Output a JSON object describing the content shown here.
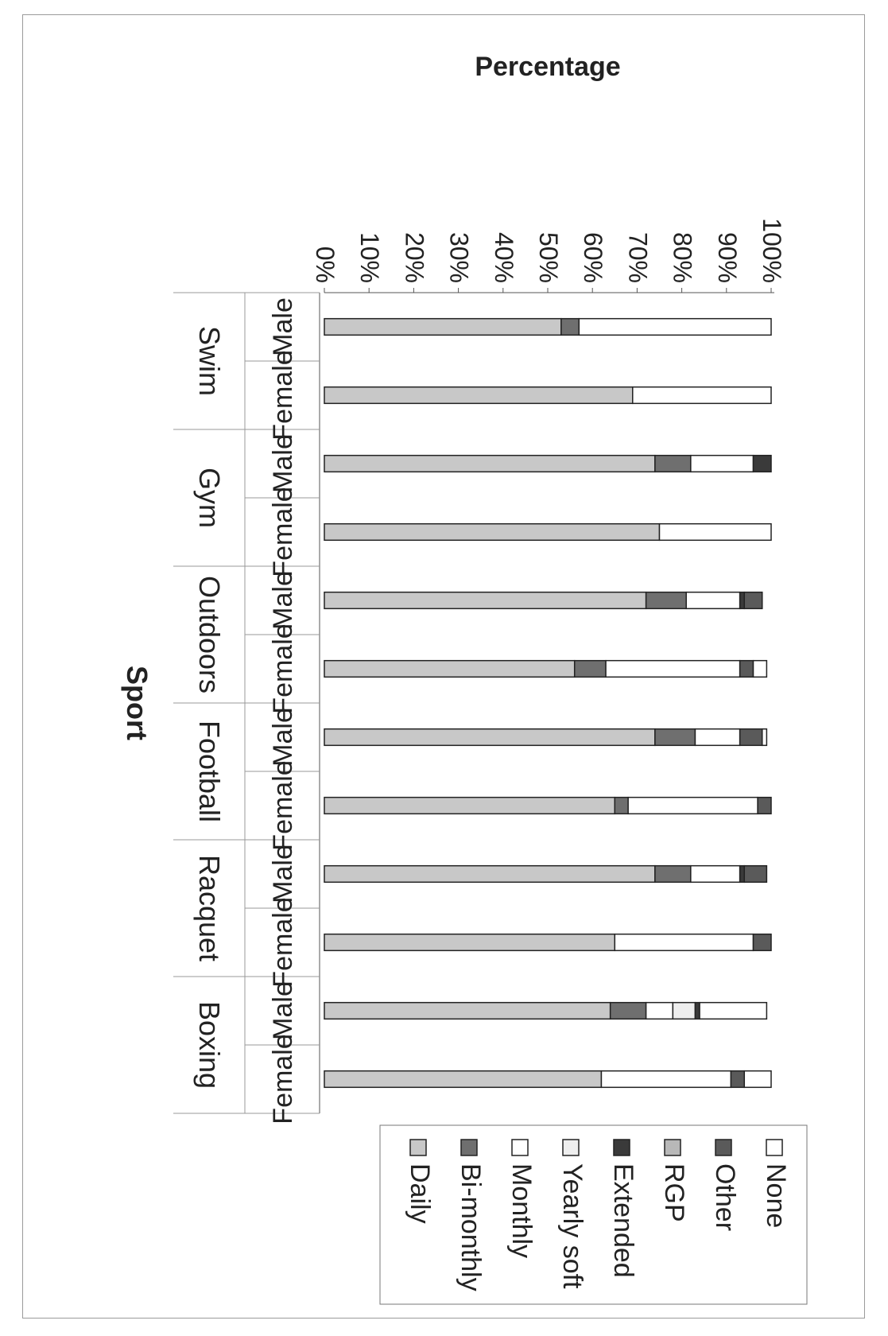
{
  "chart_data": {
    "type": "bar",
    "stacked": true,
    "orientation": "rotated-90",
    "ylabel": "Percentage",
    "xlabel": "Sport",
    "ylim": [
      0,
      100
    ],
    "y_ticks": [
      "0%",
      "10%",
      "20%",
      "30%",
      "40%",
      "50%",
      "60%",
      "70%",
      "80%",
      "90%",
      "100%"
    ],
    "groups": [
      "Swim",
      "Gym",
      "Outdoors",
      "Football",
      "Racquet",
      "Boxing"
    ],
    "categories": [
      "Male",
      "Female",
      "Male",
      "Female",
      "Male",
      "Female",
      "Male",
      "Female",
      "Male",
      "Female",
      "Male",
      "Female"
    ],
    "legend_position": "top-right",
    "series": [
      {
        "name": "Daily",
        "color": "#c8c8c8",
        "values": [
          53,
          69,
          74,
          75,
          72,
          56,
          74,
          65,
          74,
          65,
          64,
          62
        ]
      },
      {
        "name": "Bi-monthly",
        "color": "#6f6f6f",
        "values": [
          4,
          0,
          8,
          0,
          9,
          7,
          9,
          3,
          8,
          0,
          8,
          0
        ]
      },
      {
        "name": "Monthly",
        "color": "#ffffff",
        "values": [
          43,
          31,
          14,
          25,
          12,
          30,
          10,
          29,
          11,
          31,
          6,
          29
        ]
      },
      {
        "name": "Yearly soft",
        "color": "#eeeeee",
        "values": [
          0,
          0,
          0,
          0,
          0,
          0,
          0,
          0,
          0,
          0,
          5,
          0
        ]
      },
      {
        "name": "Extended",
        "color": "#3a3a3a",
        "values": [
          0,
          0,
          4,
          0,
          1,
          0,
          0,
          0,
          1,
          0,
          1,
          0
        ]
      },
      {
        "name": "RGP",
        "color": "#b8b8b8",
        "values": [
          0,
          0,
          0,
          0,
          0,
          0,
          0,
          0,
          0,
          0,
          0,
          0
        ]
      },
      {
        "name": "Other",
        "color": "#5a5a5a",
        "values": [
          0,
          0,
          0,
          0,
          4,
          3,
          5,
          3,
          5,
          4,
          0,
          3
        ]
      },
      {
        "name": "None",
        "color": "#ffffff",
        "values": [
          0,
          0,
          0,
          0,
          0,
          3,
          1,
          0,
          0,
          0,
          15,
          6
        ]
      }
    ]
  }
}
